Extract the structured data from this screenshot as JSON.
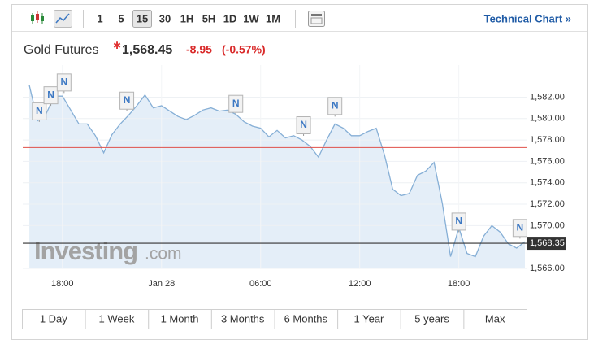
{
  "toolbar": {
    "intervals": [
      "1",
      "5",
      "15",
      "30",
      "1H",
      "5H",
      "1D",
      "1W",
      "1M"
    ],
    "active": "15",
    "link": "Technical Chart »"
  },
  "header": {
    "name": "Gold Futures",
    "price": "1,568.45",
    "change": "-8.95",
    "change_pct": "(-0.57%)"
  },
  "watermark": {
    "brand": "Investing",
    "suffix": ".com"
  },
  "ranges": [
    "1 Day",
    "1 Week",
    "1 Month",
    "3 Months",
    "6 Months",
    "1 Year",
    "5 years",
    "Max"
  ],
  "chart_data": {
    "type": "line",
    "xlim": [
      15.6,
      46.1
    ],
    "xticks": [
      {
        "value": 18,
        "label": "18:00"
      },
      {
        "value": 24,
        "label": "Jan 28"
      },
      {
        "value": 30,
        "label": "06:00"
      },
      {
        "value": 36,
        "label": "12:00"
      },
      {
        "value": 42,
        "label": "18:00"
      }
    ],
    "ylim": [
      1566,
      1585
    ],
    "yticks": [
      {
        "value": 1566,
        "label": "1,566.00"
      },
      {
        "value": 1570,
        "label": "1,570.00"
      },
      {
        "value": 1572,
        "label": "1,572.00"
      },
      {
        "value": 1574,
        "label": "1,574.00"
      },
      {
        "value": 1576,
        "label": "1,576.00"
      },
      {
        "value": 1578,
        "label": "1,578.00"
      },
      {
        "value": 1580,
        "label": "1,580.00"
      },
      {
        "value": 1582,
        "label": "1,582.00"
      }
    ],
    "grid": true,
    "series": [
      {
        "color": "#86afd6",
        "fill": "#e4eef8",
        "x": [
          16,
          16.5,
          17,
          17.5,
          18,
          18.5,
          19,
          19.5,
          20,
          20.5,
          21,
          21.5,
          22,
          22.5,
          23,
          23.5,
          24,
          24.5,
          25,
          25.5,
          26,
          26.5,
          27,
          27.5,
          28,
          28.5,
          29,
          29.5,
          30,
          30.5,
          31,
          31.5,
          32,
          32.5,
          33,
          33.5,
          34,
          34.5,
          35,
          35.5,
          36,
          36.5,
          37,
          37.5,
          38,
          38.5,
          39,
          39.5,
          40,
          40.5,
          41,
          41.5,
          42,
          42.5,
          43,
          43.5,
          44,
          44.5,
          45,
          45.5,
          46
        ],
        "values": [
          1583.1,
          1579.8,
          1580.4,
          1582.1,
          1582.1,
          1580.8,
          1579.5,
          1579.5,
          1578.4,
          1576.8,
          1578.5,
          1579.5,
          1580.3,
          1581.2,
          1582.2,
          1581.0,
          1581.2,
          1580.7,
          1580.2,
          1579.9,
          1580.3,
          1580.8,
          1581.0,
          1580.7,
          1580.8,
          1580.4,
          1579.7,
          1579.3,
          1579.1,
          1578.3,
          1578.9,
          1578.2,
          1578.4,
          1578.0,
          1577.4,
          1576.4,
          1578.0,
          1579.5,
          1579.1,
          1578.4,
          1578.4,
          1578.8,
          1579.1,
          1576.6,
          1573.4,
          1572.8,
          1573.0,
          1574.7,
          1575.1,
          1575.9,
          1572.1,
          1567.1,
          1569.8,
          1567.4,
          1567.1,
          1569.0,
          1570.0,
          1569.4,
          1568.3,
          1567.9,
          1568.5
        ]
      }
    ],
    "reference_line": {
      "value": 1577.3,
      "color": "#e0514a"
    },
    "current": {
      "value": 1568.35,
      "label": "1,568.35",
      "color": "#333333"
    },
    "news": {
      "label": "N",
      "x": [
        16.6,
        17.3,
        18.1,
        21.9,
        28.5,
        32.6,
        34.5,
        42.0,
        45.7
      ],
      "values": [
        1580.6,
        1582.1,
        1583.3,
        1581.6,
        1581.3,
        1579.3,
        1581.1,
        1570.3,
        1569.7
      ]
    }
  }
}
